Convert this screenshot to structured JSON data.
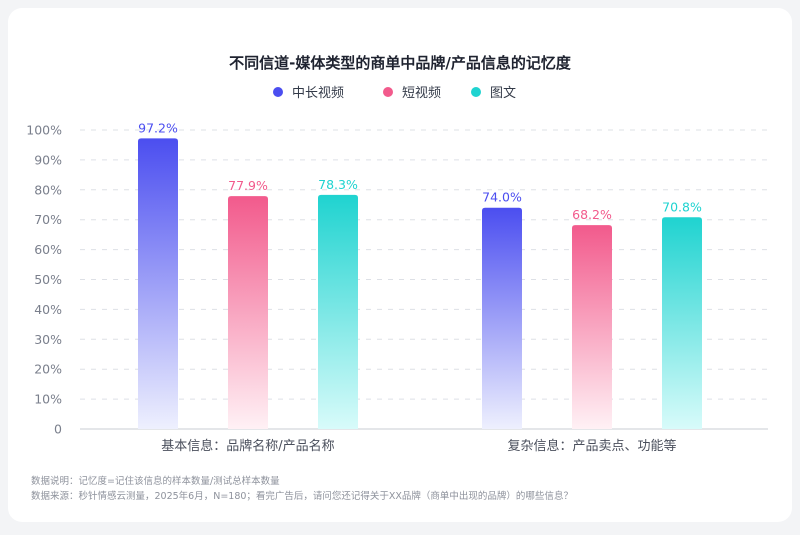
{
  "chart_data": {
    "type": "bar",
    "title": "不同信道-媒体类型的商单中品牌/产品信息的记忆度",
    "categories": [
      "基本信息：品牌名称/产品名称",
      "复杂信息：产品卖点、功能等"
    ],
    "series": [
      {
        "name": "中长视频",
        "values": [
          97.2,
          74.0
        ],
        "labels": [
          "97.2%",
          "74.0%"
        ],
        "color": "#4b4ef0",
        "fade": "#eef0fe"
      },
      {
        "name": "短视频",
        "values": [
          77.9,
          68.2
        ],
        "labels": [
          "77.9%",
          "68.2%"
        ],
        "color": "#f25a8c",
        "fade": "#fff1f5"
      },
      {
        "name": "图文",
        "values": [
          78.3,
          70.8
        ],
        "labels": [
          "78.3%",
          "70.8%"
        ],
        "color": "#1fd3d0",
        "fade": "#d8fbfa"
      }
    ],
    "ylim": [
      0,
      100
    ],
    "yticks": [
      "0",
      "10%",
      "20%",
      "30%",
      "40%",
      "50%",
      "60%",
      "70%",
      "80%",
      "90%",
      "100%"
    ],
    "grid": true,
    "legend": "top-center"
  },
  "notes": {
    "line1": "数据说明：记忆度=记住该信息的样本数量/测试总样本数量",
    "line2": "数据来源：秒针情感云测量，2025年6月，N=180；看完广告后，请问您还记得关于XX品牌（商单中出现的品牌）的哪些信息？"
  }
}
